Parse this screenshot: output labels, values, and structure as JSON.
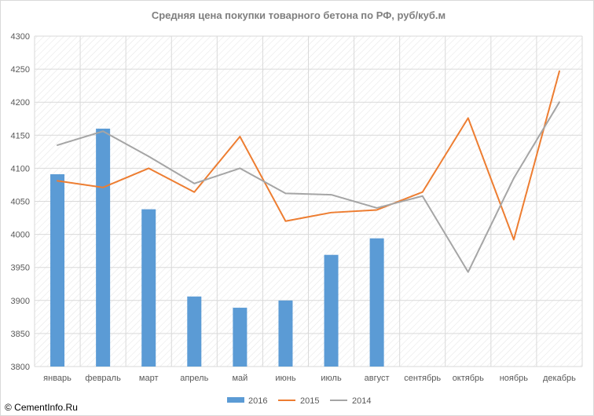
{
  "chart_data": {
    "type": "bar",
    "title": "Средняя цена покупки товарного бетона по РФ, руб/куб.м",
    "categories": [
      "январь",
      "февраль",
      "март",
      "апрель",
      "май",
      "июнь",
      "июль",
      "август",
      "сентябрь",
      "октябрь",
      "ноябрь",
      "декабрь"
    ],
    "ylim": [
      3800,
      4300
    ],
    "yticks": [
      3800,
      3850,
      3900,
      3950,
      4000,
      4050,
      4100,
      4150,
      4200,
      4250,
      4300
    ],
    "grid": true,
    "legend_position": "bottom",
    "series": [
      {
        "name": "2016",
        "type": "bar",
        "color": "#5b9bd5",
        "values": [
          4091,
          4160,
          4038,
          3906,
          3889,
          3900,
          3969,
          3994,
          null,
          null,
          null,
          null
        ]
      },
      {
        "name": "2015",
        "type": "line",
        "color": "#ed7d31",
        "values": [
          4081,
          4071,
          4100,
          4064,
          4148,
          4020,
          4033,
          4037,
          4064,
          4176,
          3992,
          4247
        ]
      },
      {
        "name": "2014",
        "type": "line",
        "color": "#a5a5a5",
        "values": [
          4135,
          4156,
          4118,
          4077,
          4100,
          4062,
          4060,
          4040,
          4058,
          3943,
          4085,
          4200
        ]
      }
    ]
  },
  "watermark": "© CementInfo.Ru"
}
